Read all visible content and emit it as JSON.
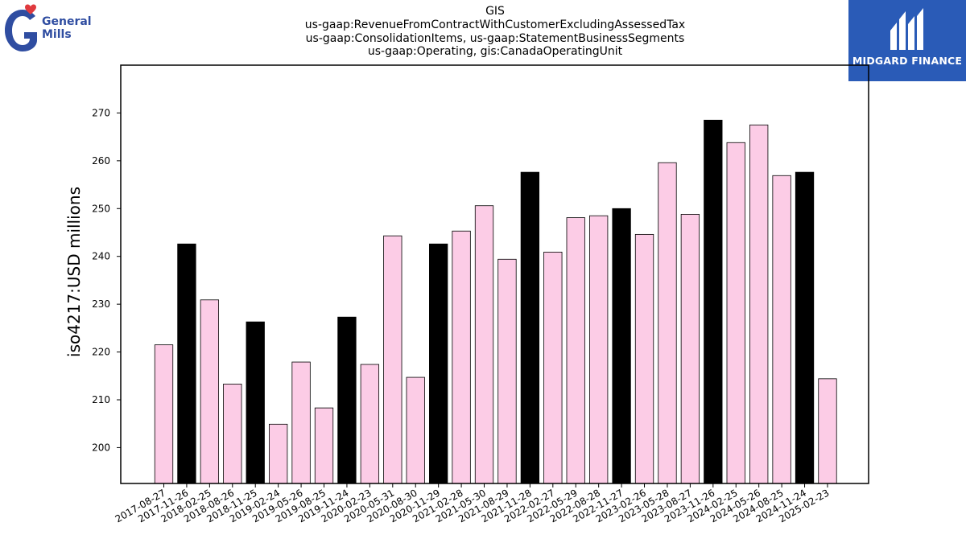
{
  "header": {
    "title_lines": [
      "GIS",
      "us-gaap:RevenueFromContractWithCustomerExcludingAssessedTax",
      "us-gaap:ConsolidationItems, us-gaap:StatementBusinessSegments",
      "us-gaap:Operating, gis:CanadaOperatingUnit"
    ]
  },
  "logos": {
    "left": {
      "text_line1": "General",
      "text_line2": "Mills",
      "color": "#2f4da1",
      "heart_color": "#e03a3e"
    },
    "right": {
      "text": "MIDGARD FINANCE",
      "background": "#2a5bb7"
    }
  },
  "chart_data": {
    "type": "bar",
    "title": "GIS\nus-gaap:RevenueFromContractWithCustomerExcludingAssessedTax\nus-gaap:ConsolidationItems, us-gaap:StatementBusinessSegments\nus-gaap:Operating, gis:CanadaOperatingUnit",
    "xlabel": "",
    "ylabel": "iso4217:USD  millions",
    "ylim": [
      192.5,
      280
    ],
    "yticks": [
      200,
      210,
      220,
      230,
      240,
      250,
      260,
      270
    ],
    "grid": false,
    "colors": {
      "quarter": "#fccce6",
      "annual": "#000000",
      "edge": "#000000"
    },
    "categories": [
      "2017-08-27",
      "2017-11-26",
      "2018-02-25",
      "2018-08-26",
      "2018-11-25",
      "2019-02-24",
      "2019-05-26",
      "2019-08-25",
      "2019-11-24",
      "2020-02-23",
      "2020-05-31",
      "2020-08-30",
      "2020-11-29",
      "2021-02-28",
      "2021-05-30",
      "2021-08-29",
      "2021-11-28",
      "2022-02-27",
      "2022-05-29",
      "2022-08-28",
      "2022-11-27",
      "2023-02-26",
      "2023-05-28",
      "2023-08-27",
      "2023-11-26",
      "2024-02-25",
      "2024-05-26",
      "2024-08-25",
      "2024-11-24",
      "2025-02-23"
    ],
    "values": [
      221.5,
      242.6,
      230.9,
      213.3,
      226.3,
      204.9,
      217.9,
      208.3,
      227.3,
      217.4,
      244.3,
      214.7,
      242.6,
      245.3,
      250.6,
      239.4,
      257.6,
      240.9,
      248.1,
      248.5,
      250.0,
      244.6,
      259.6,
      248.8,
      268.5,
      263.8,
      267.5,
      256.9,
      257.6,
      214.4
    ],
    "highlight": [
      false,
      true,
      false,
      false,
      true,
      false,
      false,
      false,
      true,
      false,
      false,
      false,
      true,
      false,
      false,
      false,
      true,
      false,
      false,
      false,
      true,
      false,
      false,
      false,
      true,
      false,
      false,
      false,
      true,
      false
    ]
  }
}
